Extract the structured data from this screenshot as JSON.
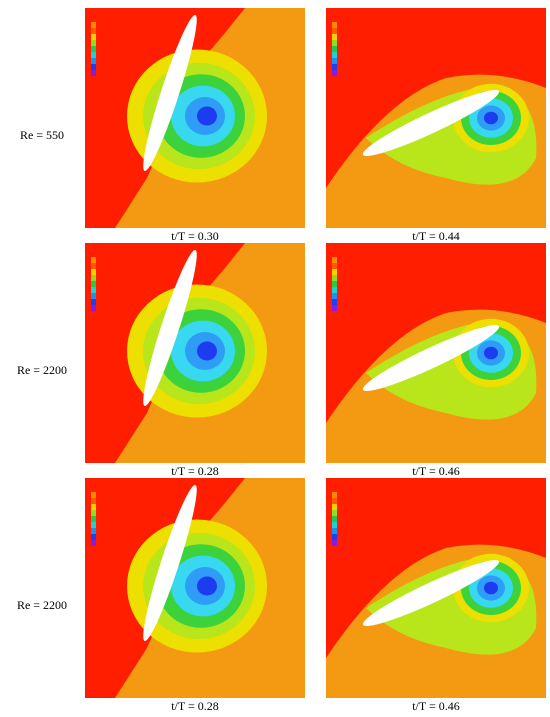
{
  "rows": [
    {
      "label": "Re = 550",
      "captions": [
        "t/T = 0.30",
        "t/T = 0.44"
      ]
    },
    {
      "label": "Re = 2200",
      "captions": [
        "t/T = 0.28",
        "t/T = 0.46"
      ]
    },
    {
      "label": "Re = 2200",
      "captions": [
        "t/T = 0.28",
        "t/T = 0.46"
      ]
    }
  ]
}
